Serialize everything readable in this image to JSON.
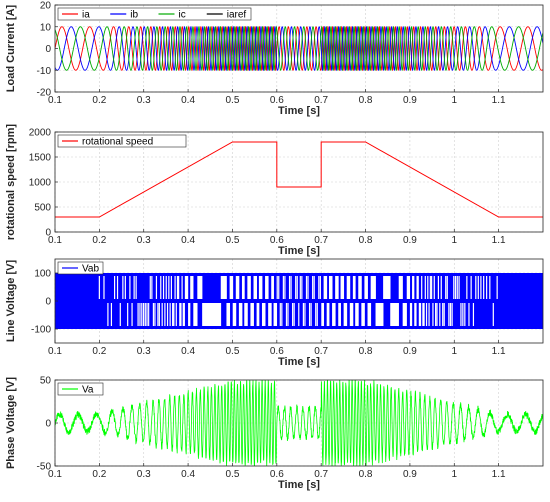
{
  "colors": {
    "ia": "#ff0000",
    "ib": "#0000ff",
    "ic": "#00aa00",
    "iaref": "#000000",
    "speed": "#ff0000",
    "vab": "#0000ff",
    "va": "#00ff00"
  },
  "chart_data": [
    {
      "type": "line",
      "ylabel": "Load Current [A]",
      "xlabel": "Time [s]",
      "xlim": [
        0.1,
        1.2
      ],
      "ylim": [
        -20,
        20
      ],
      "xticks": [
        "0.1",
        "0.2",
        "0.3",
        "0.4",
        "0.5",
        "0.6",
        "0.7",
        "0.8",
        "0.9",
        "1",
        "1.1"
      ],
      "yticks": [
        "20",
        "10",
        "0",
        "-10",
        "-20"
      ],
      "legend_position": "top-left",
      "grid": true,
      "amplitude": 10,
      "series": [
        {
          "name": "ia",
          "phase_deg": 0
        },
        {
          "name": "ib",
          "phase_deg": -120
        },
        {
          "name": "ic",
          "phase_deg": 120
        },
        {
          "name": "iaref",
          "phase_deg": 0
        }
      ]
    },
    {
      "type": "line",
      "ylabel": "rotational speed [rpm]",
      "xlabel": "Time [s]",
      "xlim": [
        0.1,
        1.2
      ],
      "ylim": [
        0,
        2000
      ],
      "xticks": [
        "0.1",
        "0.2",
        "0.3",
        "0.4",
        "0.5",
        "0.6",
        "0.7",
        "0.8",
        "0.9",
        "1",
        "1.1"
      ],
      "yticks": [
        "2000",
        "1500",
        "1000",
        "500",
        "0"
      ],
      "legend_position": "top-left",
      "grid": true,
      "series": [
        {
          "name": "rotational speed",
          "x": [
            0.1,
            0.2,
            0.5,
            0.6,
            0.6,
            0.7,
            0.7,
            0.8,
            1.1,
            1.2
          ],
          "y": [
            300,
            300,
            1800,
            1800,
            900,
            900,
            1800,
            1800,
            300,
            300
          ]
        }
      ]
    },
    {
      "type": "line",
      "ylabel": "Line Voltage [V]",
      "xlabel": "Time [s]",
      "xlim": [
        0.1,
        1.2
      ],
      "ylim": [
        -150,
        150
      ],
      "xticks": [
        "0.1",
        "0.2",
        "0.3",
        "0.4",
        "0.5",
        "0.6",
        "0.7",
        "0.8",
        "0.9",
        "1",
        "1.1"
      ],
      "yticks": [
        "100",
        "0",
        "-100"
      ],
      "legend_position": "top-left",
      "grid": true,
      "amplitude": 100,
      "series": [
        {
          "name": "Vab"
        }
      ]
    },
    {
      "type": "line",
      "ylabel": "Phase Voltage [V]",
      "xlabel": "Time [s]",
      "xlim": [
        0.1,
        1.2
      ],
      "ylim": [
        -50,
        50
      ],
      "xticks": [
        "0.1",
        "0.2",
        "0.3",
        "0.4",
        "0.5",
        "0.6",
        "0.7",
        "0.8",
        "0.9",
        "1",
        "1.1"
      ],
      "yticks": [
        "50",
        "0",
        "-50"
      ],
      "legend_position": "top-left",
      "grid": true,
      "series": [
        {
          "name": "Va"
        }
      ]
    }
  ]
}
